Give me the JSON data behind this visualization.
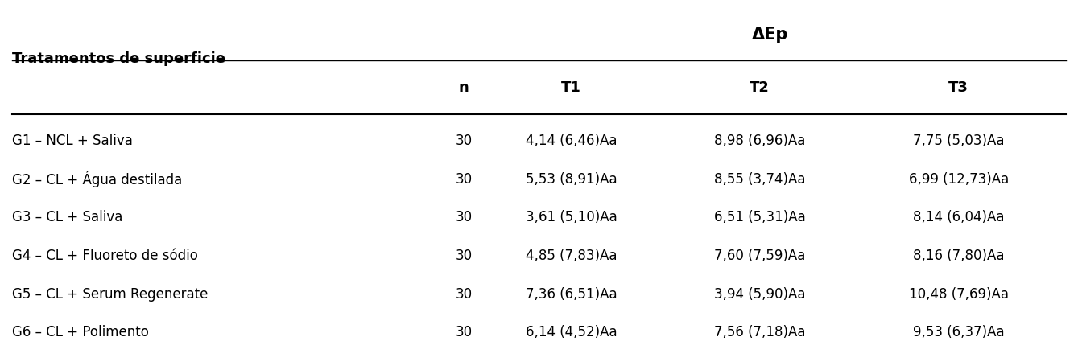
{
  "title_left": "Tratamentos de superficie",
  "title_dep": "ΔEp",
  "col_headers": [
    "n",
    "T1",
    "T2",
    "T3"
  ],
  "rows": [
    {
      "group": "G1 – NCL + Saliva",
      "n": "30",
      "T1": "4,14 (6,46)Aa",
      "T2": "8,98 (6,96)Aa",
      "T3": "7,75 (5,03)Aa"
    },
    {
      "group": "G2 – CL + Água destilada",
      "n": "30",
      "T1": "5,53 (8,91)Aa",
      "T2": "8,55 (3,74)Aa",
      "T3": "6,99 (12,73)Aa"
    },
    {
      "group": "G3 – CL + Saliva",
      "n": "30",
      "T1": "3,61 (5,10)Aa",
      "T2": "6,51 (5,31)Aa",
      "T3": "8,14 (6,04)Aa"
    },
    {
      "group": "G4 – CL + Fluoreto de sódio",
      "n": "30",
      "T1": "4,85 (7,83)Aa",
      "T2": "7,60 (7,59)Aa",
      "T3": "8,16 (7,80)Aa"
    },
    {
      "group": "G5 – CL + Serum Regenerate",
      "n": "30",
      "T1": "7,36 (6,51)Aa",
      "T2": "3,94 (5,90)Aa",
      "T3": "10,48 (7,69)Aa"
    },
    {
      "group": "G6 – CL + Polimento",
      "n": "30",
      "T1": "6,14 (4,52)Aa",
      "T2": "7,56 (7,18)Aa",
      "T3": "9,53 (6,37)Aa"
    }
  ],
  "background_color": "#ffffff",
  "header_line_color": "#000000",
  "text_color": "#000000",
  "font_size_header": 13,
  "font_size_data": 12,
  "font_size_title": 13
}
